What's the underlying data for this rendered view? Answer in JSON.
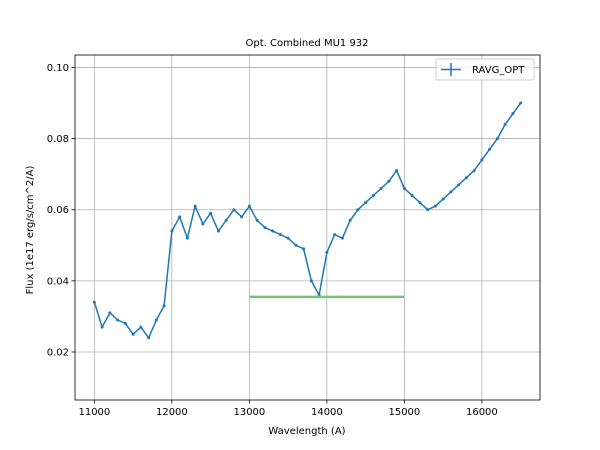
{
  "chart_data": {
    "type": "line",
    "title": "Opt. Combined MU1 932",
    "xlabel": "Wavelength (A)",
    "ylabel": "Flux (1e17 erg/s/cm^2/A)",
    "xlim": [
      10750,
      16750
    ],
    "ylim": [
      0.0065,
      0.1035
    ],
    "xticks": [
      11000,
      12000,
      13000,
      14000,
      15000,
      16000
    ],
    "yticks": [
      0.02,
      0.04,
      0.06,
      0.08,
      0.1
    ],
    "xtick_labels": [
      "11000",
      "12000",
      "13000",
      "14000",
      "15000",
      "16000"
    ],
    "ytick_labels": [
      "0.02",
      "0.04",
      "0.06",
      "0.08",
      "0.10"
    ],
    "grid": true,
    "legend_position": "top-right",
    "series": [
      {
        "name": "RAVG_OPT",
        "color": "#1f77b4",
        "style": "errorbar-line",
        "x": [
          11000,
          11100,
          11200,
          11300,
          11400,
          11500,
          11600,
          11700,
          11800,
          11900,
          12000,
          12100,
          12200,
          12300,
          12400,
          12500,
          12600,
          12700,
          12800,
          12900,
          13000,
          13100,
          13200,
          13300,
          13400,
          13500,
          13600,
          13700,
          13800,
          13900,
          14000,
          14100,
          14200,
          14300,
          14400,
          14500,
          14600,
          14700,
          14800,
          14900,
          15000,
          15100,
          15200,
          15300,
          15400,
          15500,
          15600,
          15700,
          15800,
          15900,
          16000,
          16100,
          16200,
          16300,
          16400,
          16500
        ],
        "y": [
          0.034,
          0.027,
          0.031,
          0.029,
          0.028,
          0.025,
          0.027,
          0.024,
          0.029,
          0.033,
          0.054,
          0.058,
          0.052,
          0.061,
          0.056,
          0.059,
          0.054,
          0.057,
          0.06,
          0.058,
          0.061,
          0.057,
          0.055,
          0.054,
          0.053,
          0.052,
          0.05,
          0.049,
          0.04,
          0.036,
          0.048,
          0.053,
          0.052,
          0.057,
          0.06,
          0.062,
          0.064,
          0.066,
          0.068,
          0.071,
          0.066,
          0.064,
          0.062,
          0.06,
          0.061,
          0.063,
          0.065,
          0.067,
          0.069,
          0.071,
          0.074,
          0.077,
          0.08,
          0.084,
          0.087,
          0.09
        ]
      },
      {
        "name": "",
        "color": "#74c476",
        "style": "line",
        "x": [
          13000,
          15000
        ],
        "y": [
          0.0355,
          0.0355
        ]
      }
    ]
  }
}
